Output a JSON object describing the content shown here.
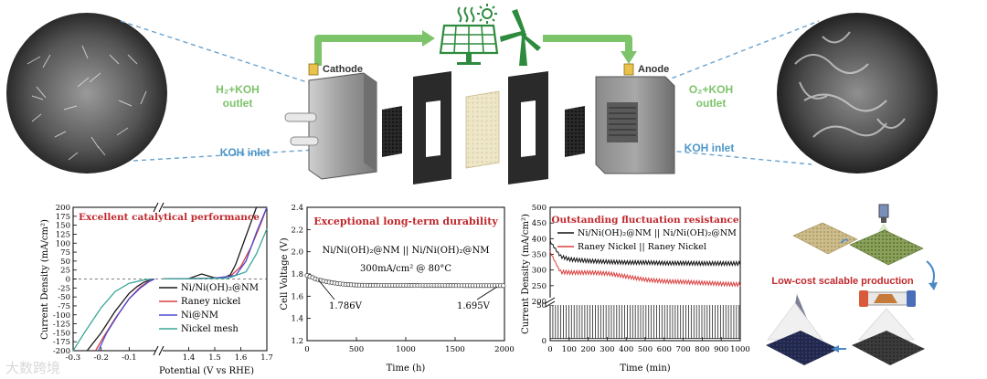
{
  "top": {
    "cathode_label": "Cathode",
    "anode_label": "Anode",
    "h2_outlet": [
      "H₂+KOH",
      "outlet"
    ],
    "o2_outlet": [
      "O₂+KOH",
      "outlet"
    ],
    "koh_inlet_left": "KOH inlet",
    "koh_inlet_right": "KOH inlet",
    "energy_icons": [
      "heat-icon",
      "sun-icon",
      "solar-panel-icon",
      "wind-turbine-icon"
    ],
    "colors": {
      "arrow": "#7dc36a",
      "inlet_text": "#4f97c8",
      "outlet_text": "#7dc36a",
      "label_box": "#e8c24a"
    }
  },
  "panel1": {
    "title": "Excellent catalytical performance",
    "ylabel": "Current Density (mA/cm²)",
    "xlabel": "Potential (V vs RHE)",
    "legend": [
      "Ni/Ni(OH)₂@NM",
      "Raney nickel",
      "Ni@NM",
      "Nickel mesh"
    ]
  },
  "panel2": {
    "title": "Exceptional long-term durability",
    "ylabel": "Cell Voltage (V)",
    "xlabel": "Time (h)",
    "note_line1": "Ni/Ni(OH)₂@NM || Ni/Ni(OH)₂@NM",
    "note_line2": "300mA/cm² @ 80°C",
    "start_label": "1.786V",
    "end_label": "1.695V"
  },
  "panel3": {
    "title": "Outstanding fluctuation resistance",
    "ylabel": "Current Density (mA/cm²)",
    "xlabel": "Time (min)",
    "legend": [
      "Ni/Ni(OH)₂@NM || Ni/Ni(OH)₂@NM",
      "Raney Nickel || Raney Nickel"
    ]
  },
  "panel4": {
    "caption": "Low-cost scalable production"
  },
  "watermark": "大数跨境",
  "chart_data": [
    {
      "type": "line",
      "title": "Excellent catalytical performance",
      "xlabel": "Potential (V vs RHE)",
      "ylabel": "Current Density (mA/cm²)",
      "xlim_left": [
        -0.3,
        0.0
      ],
      "xlim_right": [
        1.3,
        1.7
      ],
      "ylim": [
        -200,
        200
      ],
      "x_ticks_left": [
        -0.3,
        -0.2,
        -0.1
      ],
      "x_ticks_right": [
        1.4,
        1.5,
        1.6,
        1.7
      ],
      "y_ticks": [
        -200,
        -175,
        -150,
        -125,
        -100,
        -75,
        -50,
        -25,
        0,
        25,
        50,
        75,
        100,
        125,
        150,
        175,
        200
      ],
      "series": [
        {
          "name": "Ni/Ni(OH)₂@NM",
          "color": "#1a1a1a",
          "left": {
            "x": [
              -0.25,
              -0.2,
              -0.15,
              -0.1,
              -0.07,
              -0.05,
              -0.03,
              -0.01
            ],
            "y": [
              -200,
              -150,
              -90,
              -40,
              -20,
              -10,
              -4,
              0
            ]
          },
          "right": {
            "x": [
              1.3,
              1.4,
              1.45,
              1.5,
              1.54,
              1.56,
              1.58,
              1.6,
              1.62,
              1.64,
              1.66,
              1.7
            ],
            "y": [
              0,
              1,
              14,
              3,
              5,
              12,
              40,
              80,
              120,
              160,
              200,
              200
            ]
          }
        },
        {
          "name": "Raney nickel",
          "color": "#d94040",
          "left": {
            "x": [
              -0.22,
              -0.19,
              -0.15,
              -0.1,
              -0.06,
              -0.03,
              -0.01
            ],
            "y": [
              -200,
              -160,
              -110,
              -55,
              -22,
              -6,
              0
            ]
          },
          "right": {
            "x": [
              1.3,
              1.5,
              1.56,
              1.6,
              1.64,
              1.68,
              1.7
            ],
            "y": [
              0,
              2,
              8,
              35,
              90,
              160,
              200
            ]
          }
        },
        {
          "name": "Ni@NM",
          "color": "#4a4ad0",
          "left": {
            "x": [
              -0.21,
              -0.18,
              -0.14,
              -0.1,
              -0.06,
              -0.03,
              -0.01
            ],
            "y": [
              -200,
              -150,
              -100,
              -55,
              -25,
              -8,
              0
            ]
          },
          "right": {
            "x": [
              1.3,
              1.5,
              1.58,
              1.62,
              1.66,
              1.7
            ],
            "y": [
              0,
              2,
              10,
              50,
              130,
              200
            ]
          }
        },
        {
          "name": "Nickel mesh",
          "color": "#3aa79a",
          "left": {
            "x": [
              -0.3,
              -0.26,
              -0.2,
              -0.15,
              -0.1,
              -0.05,
              -0.02
            ],
            "y": [
              -200,
              -150,
              -80,
              -35,
              -12,
              -3,
              0
            ]
          },
          "right": {
            "x": [
              1.3,
              1.55,
              1.62,
              1.66,
              1.7
            ],
            "y": [
              0,
              2,
              20,
              70,
              140
            ]
          }
        }
      ]
    },
    {
      "type": "line",
      "title": "Exceptional long-term durability",
      "xlabel": "Time (h)",
      "ylabel": "Cell Voltage (V)",
      "xlim": [
        0,
        2000
      ],
      "ylim": [
        1.2,
        2.4
      ],
      "x_ticks": [
        0,
        500,
        1000,
        1500,
        2000
      ],
      "y_ticks": [
        1.2,
        1.4,
        1.6,
        1.8,
        2.0,
        2.2,
        2.4
      ],
      "series": [
        {
          "name": "Ni/Ni(OH)₂@NM || Ni/Ni(OH)₂@NM",
          "x": [
            0,
            50,
            100,
            200,
            300,
            400,
            500,
            600,
            800,
            1000,
            1200,
            1400,
            1600,
            1800,
            2000
          ],
          "y": [
            1.786,
            1.77,
            1.75,
            1.73,
            1.715,
            1.705,
            1.7,
            1.698,
            1.697,
            1.697,
            1.696,
            1.696,
            1.695,
            1.695,
            1.695
          ]
        }
      ],
      "annotations": [
        {
          "x": 0,
          "y": 1.786,
          "text": "1.786V"
        },
        {
          "x": 2000,
          "y": 1.695,
          "text": "1.695V"
        }
      ]
    },
    {
      "type": "line",
      "title": "Outstanding fluctuation resistance",
      "xlabel": "Time (min)",
      "ylabel": "Current Density (mA/cm²)",
      "xlim": [
        0,
        1000
      ],
      "ylim_upper": [
        200,
        500
      ],
      "ylim_lower": [
        0,
        50
      ],
      "x_ticks": [
        0,
        100,
        200,
        300,
        400,
        500,
        600,
        700,
        800,
        900,
        1000
      ],
      "y_ticks": [
        0,
        50,
        200,
        250,
        300,
        350,
        400,
        450,
        500
      ],
      "note": "Current alternates each cycle between a peak (upper level) and ~0 mA/cm².",
      "series": [
        {
          "name": "Ni/Ni(OH)₂@NM || Ni/Ni(OH)₂@NM",
          "color": "#111111",
          "peak_x": [
            0,
            50,
            100,
            200,
            300,
            400,
            500,
            600,
            700,
            800,
            900,
            1000
          ],
          "peak_y": [
            395,
            350,
            340,
            335,
            332,
            330,
            330,
            328,
            328,
            327,
            327,
            327
          ]
        },
        {
          "name": "Raney Nickel || Raney Nickel",
          "color": "#d94040",
          "peak_x": [
            0,
            50,
            100,
            200,
            300,
            400,
            500,
            600,
            700,
            800,
            900,
            1000
          ],
          "peak_y": [
            360,
            300,
            298,
            298,
            295,
            285,
            275,
            270,
            268,
            265,
            262,
            260
          ]
        }
      ]
    }
  ]
}
